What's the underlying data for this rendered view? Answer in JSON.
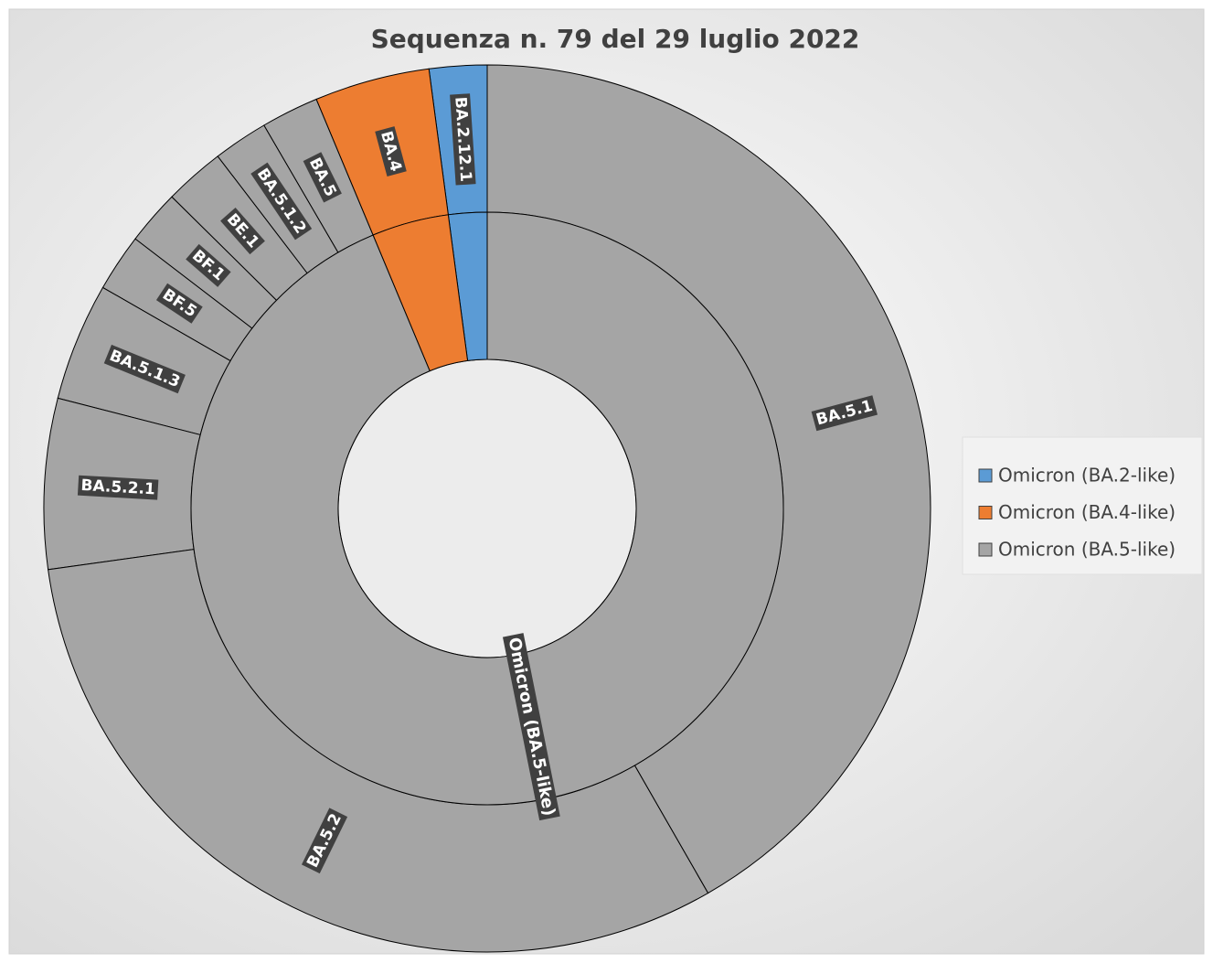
{
  "chart_data": {
    "type": "sunburst",
    "title": "Sequenza n. 79 del 29 luglio 2022",
    "legend": "right",
    "groups": [
      {
        "name": "Omicron (BA.2-like)",
        "color": "#5b9bd5",
        "children": [
          {
            "name": "BA.2.12.1",
            "value": 2.1
          }
        ]
      },
      {
        "name": "Omicron (BA.4-like)",
        "color": "#ed7d31",
        "children": [
          {
            "name": "BA.4",
            "value": 4.2
          }
        ]
      },
      {
        "name": "Omicron (BA.5-like)",
        "color": "#a5a5a5",
        "children": [
          {
            "name": "BA.5",
            "value": 2.1
          },
          {
            "name": "BA.5.1.2",
            "value": 2.0
          },
          {
            "name": "BE.1",
            "value": 2.2
          },
          {
            "name": "BF.1",
            "value": 2.0
          },
          {
            "name": "BF.5",
            "value": 2.1
          },
          {
            "name": "BA.5.1.3",
            "value": 4.3
          },
          {
            "name": "BA.5.2.1",
            "value": 6.2
          },
          {
            "name": "BA.5.2",
            "value": 31.1
          },
          {
            "name": "BA.5.1",
            "value": 41.7
          }
        ]
      }
    ]
  }
}
